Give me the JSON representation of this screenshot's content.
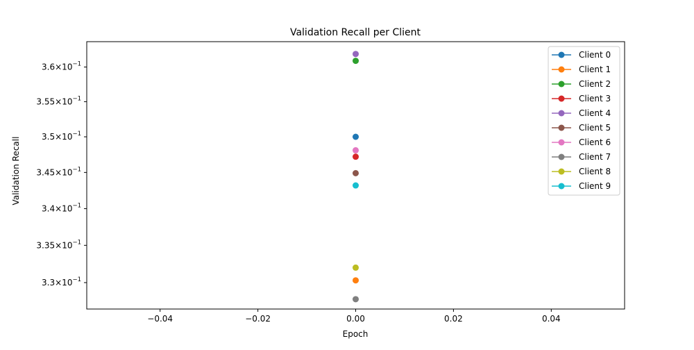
{
  "chart_data": {
    "type": "line",
    "title": "Validation Recall per Client",
    "xlabel": "Epoch",
    "ylabel": "Validation Recall",
    "xlim": [
      -0.055,
      0.055
    ],
    "ylim": [
      0.3265,
      0.3637
    ],
    "yscale": "log",
    "grid": false,
    "legend_position": "upper-right",
    "x_ticks": [
      {
        "value": -0.04,
        "label": "−0.04"
      },
      {
        "value": -0.02,
        "label": "−0.02"
      },
      {
        "value": 0.0,
        "label": "0.00"
      },
      {
        "value": 0.02,
        "label": "0.02"
      },
      {
        "value": 0.04,
        "label": "0.04"
      }
    ],
    "y_ticks": [
      {
        "value": 0.33,
        "mantissa": "3.3",
        "exponent": "−1"
      },
      {
        "value": 0.335,
        "mantissa": "3.35",
        "exponent": "−1"
      },
      {
        "value": 0.34,
        "mantissa": "3.4",
        "exponent": "−1"
      },
      {
        "value": 0.345,
        "mantissa": "3.45",
        "exponent": "−1"
      },
      {
        "value": 0.35,
        "mantissa": "3.5",
        "exponent": "−1"
      },
      {
        "value": 0.355,
        "mantissa": "3.55",
        "exponent": "−1"
      },
      {
        "value": 0.36,
        "mantissa": "3.6",
        "exponent": "−1"
      }
    ],
    "series": [
      {
        "name": "Client 0",
        "color": "#1f77b4",
        "x": [
          0
        ],
        "y": [
          0.35
        ]
      },
      {
        "name": "Client 1",
        "color": "#ff7f0e",
        "x": [
          0
        ],
        "y": [
          0.3303
        ]
      },
      {
        "name": "Client 2",
        "color": "#2ca02c",
        "x": [
          0
        ],
        "y": [
          0.3609
        ]
      },
      {
        "name": "Client 3",
        "color": "#d62728",
        "x": [
          0
        ],
        "y": [
          0.3472
        ]
      },
      {
        "name": "Client 4",
        "color": "#9467bd",
        "x": [
          0
        ],
        "y": [
          0.3619
        ]
      },
      {
        "name": "Client 5",
        "color": "#8c564b",
        "x": [
          0
        ],
        "y": [
          0.3449
        ]
      },
      {
        "name": "Client 6",
        "color": "#e377c2",
        "x": [
          0
        ],
        "y": [
          0.3481
        ]
      },
      {
        "name": "Client 7",
        "color": "#7f7f7f",
        "x": [
          0
        ],
        "y": [
          0.3278
        ]
      },
      {
        "name": "Client 8",
        "color": "#bcbd22",
        "x": [
          0
        ],
        "y": [
          0.332
        ]
      },
      {
        "name": "Client 9",
        "color": "#17becf",
        "x": [
          0
        ],
        "y": [
          0.3432
        ]
      }
    ]
  }
}
